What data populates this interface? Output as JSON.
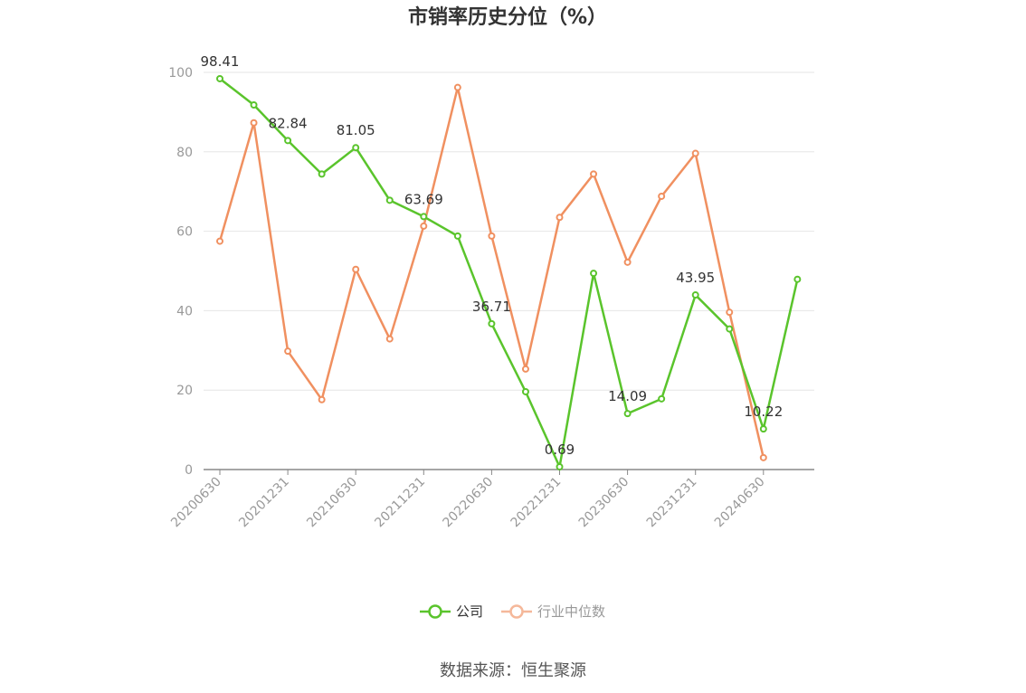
{
  "chart_data": {
    "type": "line",
    "title": "市销率历史分位（%）",
    "ylim": [
      0,
      100
    ],
    "yticks": [
      0,
      20,
      40,
      60,
      80,
      100
    ],
    "x": [
      "20200630",
      "20200930",
      "20201231",
      "20210331",
      "20210630",
      "20210930",
      "20211231",
      "20220331",
      "20220630",
      "20220930",
      "20221231",
      "20230331",
      "20230630",
      "20230930",
      "20231231",
      "20240331",
      "20240630",
      "20240930"
    ],
    "xtick_labels": [
      "20200630",
      "20201231",
      "20210630",
      "20211231",
      "20220630",
      "20221231",
      "20230630",
      "20231231",
      "20240630"
    ],
    "series": [
      {
        "name": "公司",
        "color": "#5ac42c",
        "values": [
          98.41,
          91.8,
          82.84,
          74.4,
          81.05,
          67.8,
          63.69,
          58.8,
          36.71,
          19.6,
          0.69,
          49.4,
          14.09,
          17.8,
          43.95,
          35.4,
          10.22,
          47.9
        ],
        "labels": [
          "98.41",
          "",
          "82.84",
          "",
          "81.05",
          "",
          "63.69",
          "",
          "36.71",
          "",
          "0.69",
          "",
          "14.09",
          "",
          "43.95",
          "",
          "10.22",
          ""
        ]
      },
      {
        "name": "行业中位数",
        "color": "#f09060",
        "values": [
          57.5,
          87.3,
          29.8,
          17.6,
          50.4,
          32.9,
          61.3,
          96.2,
          58.8,
          25.3,
          63.5,
          74.4,
          52.2,
          68.8,
          79.6,
          39.6,
          3.0,
          null
        ]
      }
    ],
    "legend": "bottom-center",
    "grid": true
  },
  "legend": {
    "items": [
      {
        "label": "公司",
        "color": "#5ac42c",
        "active": true
      },
      {
        "label": "行业中位数",
        "color": "#f5b89a",
        "active": false
      }
    ]
  },
  "source": "数据来源：恒生聚源"
}
